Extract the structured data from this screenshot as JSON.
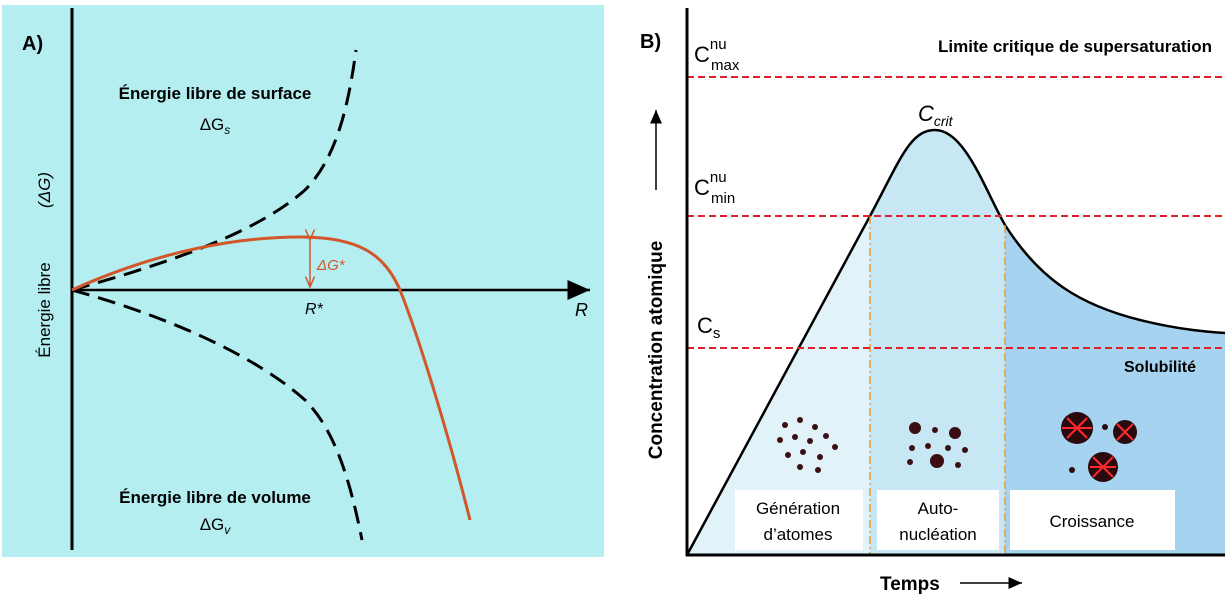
{
  "panel_a": {
    "label": "A)",
    "surface": {
      "title": "Énergie libre de surface",
      "symbol": "ΔG",
      "sub": "s"
    },
    "barrier": "ΔG*",
    "r_star": "R*",
    "r_axis": "R",
    "y_axis": {
      "label": "Énergie libre",
      "symbol": "(ΔG)"
    },
    "volume": {
      "title": "Énergie libre de volume",
      "symbol": "ΔG",
      "sub": "v"
    }
  },
  "panel_b": {
    "label": "B)",
    "c_max": {
      "base": "C",
      "sup": "nu",
      "sub": "max"
    },
    "c_min": {
      "base": "C",
      "sup": "nu",
      "sub": "min"
    },
    "c_crit": {
      "base": "C",
      "sub": "crit"
    },
    "c_s": {
      "base": "C",
      "sub": "s"
    },
    "limit": "Limite critique de supersaturation",
    "solubility": "Solubilité",
    "y_axis": "Concentration atomique",
    "x_axis": "Temps",
    "stages": [
      {
        "lines": [
          "Génération",
          "d’atomes"
        ]
      },
      {
        "lines": [
          "Auto-",
          "nucléation"
        ]
      },
      {
        "lines": [
          "Croissance"
        ]
      }
    ]
  }
}
